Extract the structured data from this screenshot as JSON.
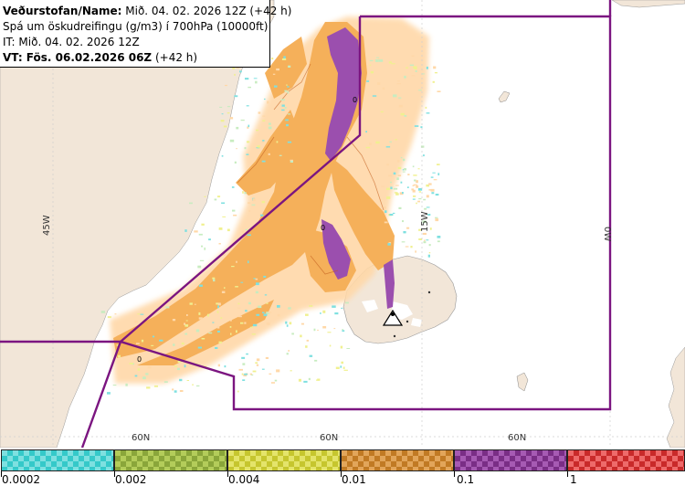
{
  "header": {
    "line1_bold": "Veðurstofan/Name:",
    "line1_rest": " Mið. 04. 02. 2026 12Z (+42 h)",
    "line2": "Spá um öskudreifingu (g/m3) í 700hPa (10000ft)",
    "line3": "IT: Mið. 04. 02. 2026 12Z",
    "line4_bold": "VT:",
    "line4_mid_bold": " Fös. 06.02.2026 06Z",
    "line4_rest": " (+42 h)"
  },
  "map_labels": {
    "lon_45w": "45W",
    "lon_15w": "15W",
    "lon_0w": "0W",
    "lat_60n_a": "60N",
    "lat_60n_b": "60N",
    "lat_60n_c": "60N",
    "contour_zero_1": "0",
    "contour_zero_2": "0",
    "contour_zero_3": "0"
  },
  "colors": {
    "land": "#f2e6d8",
    "ash_low": "#ffd8a8",
    "ash_mid": "#f5b05a",
    "ash_high": "#9b4fae",
    "boundary": "#7b1580",
    "dots_cyan": "#7fe0e0",
    "dots_yellow": "#f0f090"
  },
  "legend": {
    "items": [
      {
        "color_a": "#35c9c9",
        "color_b": "#7ee0e0"
      },
      {
        "color_a": "#8aa63a",
        "color_b": "#b3cc5a"
      },
      {
        "color_a": "#c6c62e",
        "color_b": "#e4e46a"
      },
      {
        "color_a": "#c17a24",
        "color_b": "#e2a55a"
      },
      {
        "color_a": "#7a2e86",
        "color_b": "#a65ab3"
      },
      {
        "color_a": "#c92a2a",
        "color_b": "#ee6a6a"
      }
    ],
    "labels": [
      "0.0002",
      "0.002",
      "0.004",
      "0.01",
      "0.1",
      "1"
    ]
  }
}
